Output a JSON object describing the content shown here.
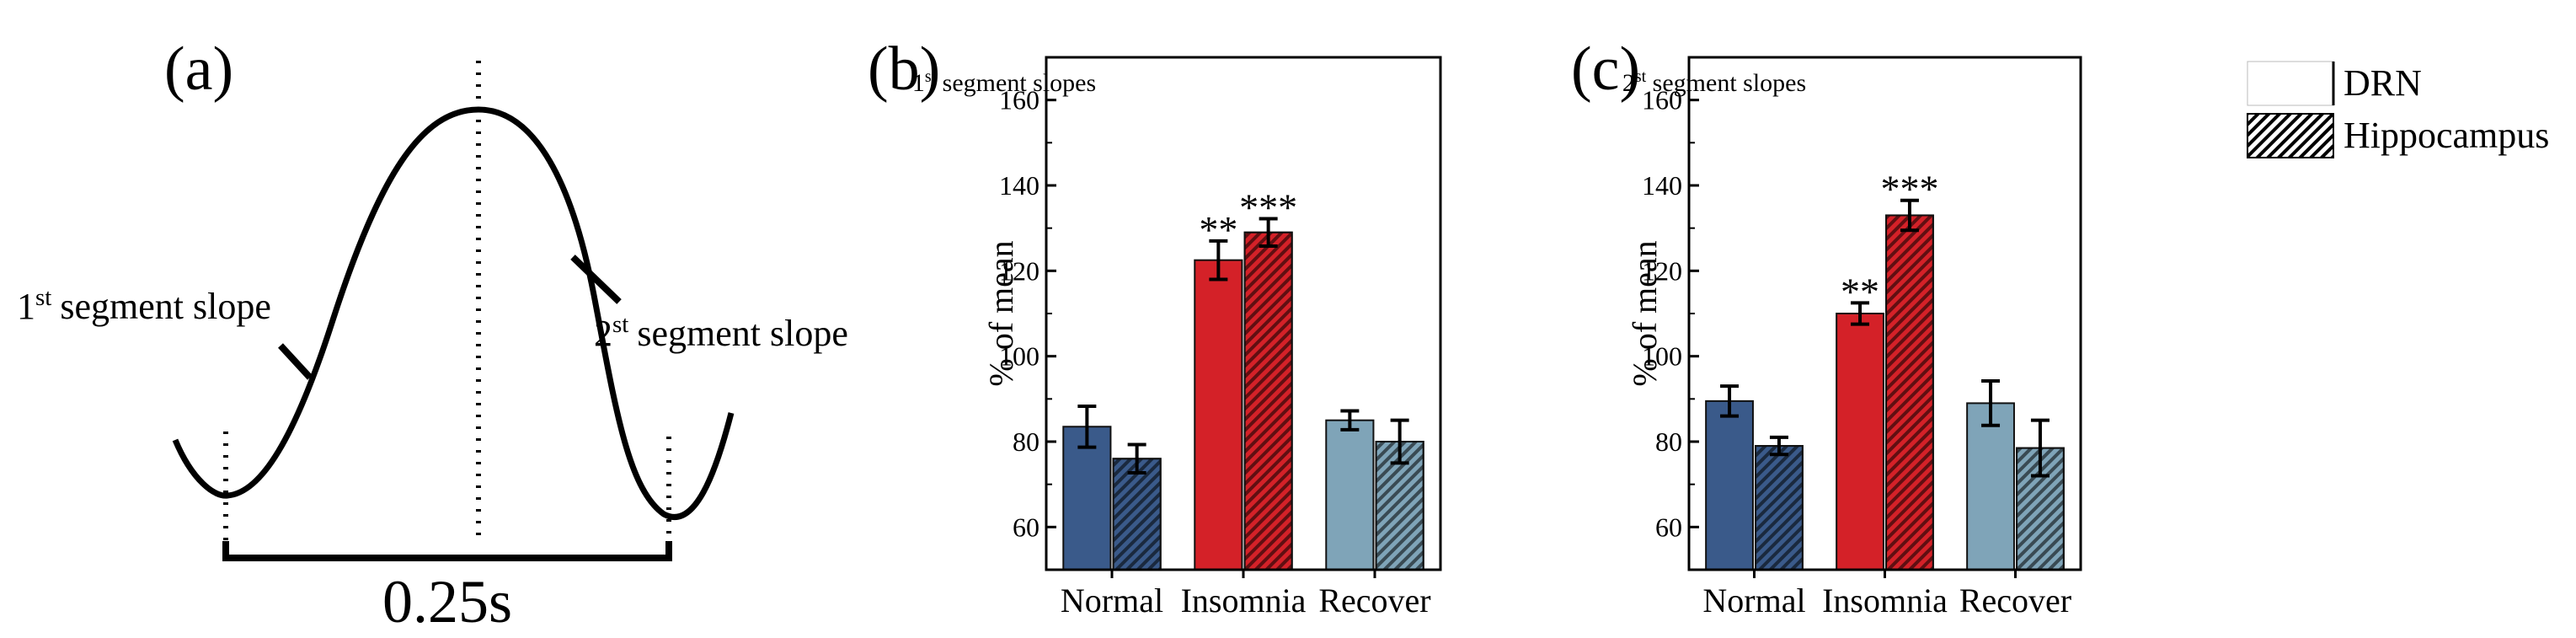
{
  "panel_a": {
    "label": "(a)",
    "slope1_text": "segment slope",
    "slope1_num": "1",
    "slope1_sup": "st",
    "slope2_text": "segment slope",
    "slope2_num": "2",
    "slope2_sup": "st",
    "duration": "0.25s"
  },
  "legend": {
    "items": [
      {
        "name": "DRN",
        "pattern": "solid"
      },
      {
        "name": "Hippocampus",
        "pattern": "hatched"
      }
    ]
  },
  "colors": {
    "normal": "#3a5a8a",
    "insomnia": "#d42128",
    "recover": "#7fa4b8"
  },
  "chart_data": [
    {
      "panel_label": "(b)",
      "type": "bar",
      "title_num": "1",
      "title_sup": "st",
      "title_text": " segment slopes",
      "ylabel": "% of mean",
      "ylim": [
        50,
        170
      ],
      "yticks": [
        60,
        80,
        100,
        120,
        140,
        160
      ],
      "categories": [
        "Normal",
        "Insomnia",
        "Recover"
      ],
      "series": [
        {
          "name": "DRN",
          "values": [
            83.5,
            122.5,
            85
          ],
          "errors": [
            4.8,
            4.5,
            2.2
          ],
          "sig": [
            "",
            "**",
            ""
          ]
        },
        {
          "name": "Hippocampus",
          "values": [
            76,
            129,
            80
          ],
          "errors": [
            3.3,
            3.2,
            5.0
          ],
          "sig": [
            "",
            "***",
            ""
          ]
        }
      ]
    },
    {
      "panel_label": "(c)",
      "type": "bar",
      "title_num": "2",
      "title_sup": "st",
      "title_text": " segment slopes",
      "ylabel": "% of mean",
      "ylim": [
        50,
        170
      ],
      "yticks": [
        60,
        80,
        100,
        120,
        140,
        160
      ],
      "categories": [
        "Normal",
        "Insomnia",
        "Recover"
      ],
      "series": [
        {
          "name": "DRN",
          "values": [
            89.5,
            110,
            89
          ],
          "errors": [
            3.5,
            2.5,
            5.2
          ],
          "sig": [
            "",
            "**",
            ""
          ]
        },
        {
          "name": "Hippocampus",
          "values": [
            79,
            133,
            78.5
          ],
          "errors": [
            2.0,
            3.5,
            6.5
          ],
          "sig": [
            "",
            "***",
            ""
          ]
        }
      ]
    }
  ]
}
